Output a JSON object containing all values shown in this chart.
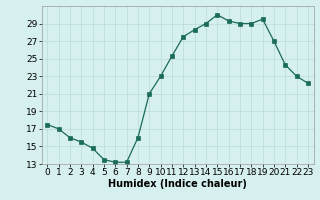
{
  "x": [
    0,
    1,
    2,
    3,
    4,
    5,
    6,
    7,
    8,
    9,
    10,
    11,
    12,
    13,
    14,
    15,
    16,
    17,
    18,
    19,
    20,
    21,
    22,
    23
  ],
  "y": [
    17.5,
    17.0,
    16.0,
    15.5,
    14.8,
    13.5,
    13.2,
    13.2,
    16.0,
    21.0,
    23.0,
    25.3,
    27.5,
    28.3,
    29.0,
    30.0,
    29.3,
    29.0,
    29.0,
    29.5,
    27.0,
    24.3,
    23.0,
    22.2
  ],
  "xlabel": "Humidex (Indice chaleur)",
  "ylim": [
    13,
    31
  ],
  "xlim": [
    -0.5,
    23.5
  ],
  "yticks": [
    13,
    15,
    17,
    19,
    21,
    23,
    25,
    27,
    29
  ],
  "xticks": [
    0,
    1,
    2,
    3,
    4,
    5,
    6,
    7,
    8,
    9,
    10,
    11,
    12,
    13,
    14,
    15,
    16,
    17,
    18,
    19,
    20,
    21,
    22,
    23
  ],
  "line_color": "#1a6b5a",
  "marker_color": "#1a6b5a",
  "bg_color": "#d6f0ef",
  "grid_color": "#c0dedd",
  "label_fontsize": 7.0,
  "tick_fontsize": 6.5
}
